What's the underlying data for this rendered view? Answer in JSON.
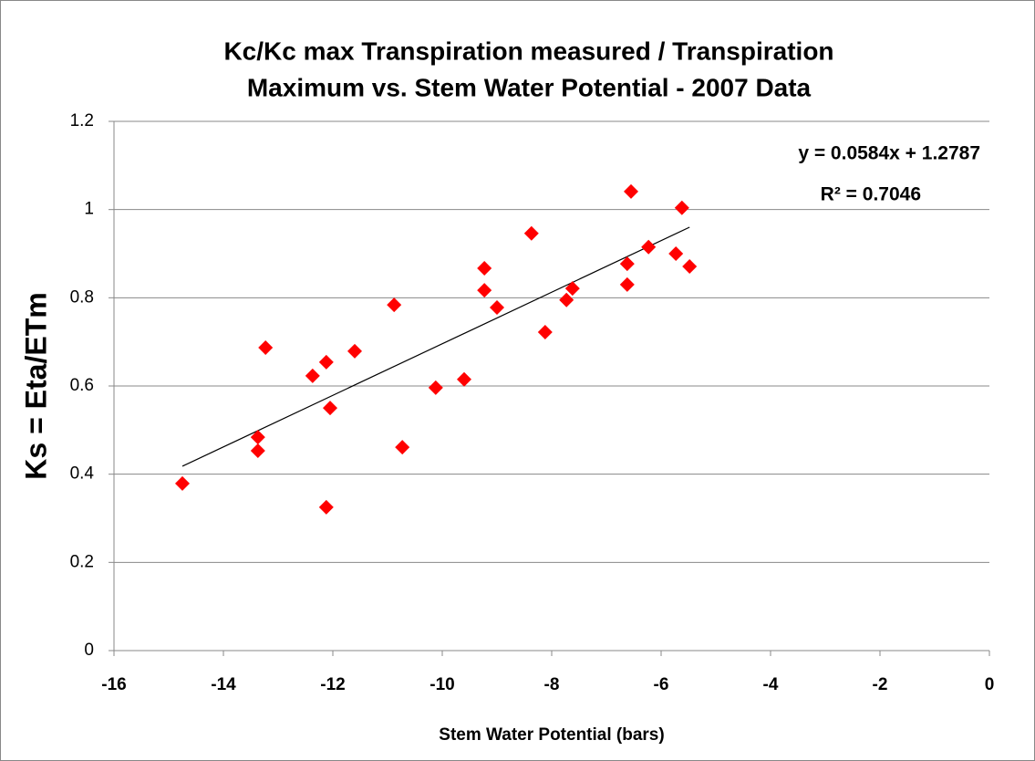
{
  "chart_data": {
    "type": "scatter",
    "title": [
      "Kc/Kc max  Transpiration measured /  Transpiration",
      "Maximum vs. Stem Water Potential - 2007 Data"
    ],
    "x_label": "Stem Water Potential (bars)",
    "y_label": "Ks = Eta/ETm",
    "series": [
      {
        "color": "#ff0000",
        "x": [
          -14.75,
          -13.37,
          -13.37,
          -13.23,
          -12.37,
          -12.12,
          -12.12,
          -12.05,
          -11.6,
          -10.88,
          -10.73,
          -10.12,
          -9.6,
          -9.23,
          -9.23,
          -9.0,
          -8.37,
          -8.12,
          -7.73,
          -7.62,
          -6.62,
          -6.62,
          -6.55,
          -6.23,
          -5.73,
          -5.62,
          -5.48
        ],
        "values": [
          0.379,
          0.484,
          0.453,
          0.687,
          0.623,
          0.654,
          0.325,
          0.55,
          0.679,
          0.784,
          0.461,
          0.596,
          0.615,
          0.867,
          0.817,
          0.778,
          0.946,
          0.722,
          0.795,
          0.821,
          0.877,
          0.83,
          1.041,
          0.915,
          0.9,
          1.004,
          0.871
        ]
      }
    ],
    "trendline": {
      "color": "#000000",
      "x": [
        -14.75,
        -5.48
      ],
      "values": [
        0.418,
        0.96
      ]
    },
    "annotations": [
      "y = 0.0584x + 1.2787",
      "R² = 0.7046"
    ],
    "xlim": [
      -16,
      0
    ],
    "xticks": [
      -16,
      -14,
      -12,
      -10,
      -8,
      -6,
      -4,
      -2,
      0
    ],
    "ylim": [
      0,
      1.2
    ],
    "yticks": [
      0,
      0.2,
      0.4,
      0.6,
      0.8,
      1,
      1.2
    ],
    "grid": true
  }
}
